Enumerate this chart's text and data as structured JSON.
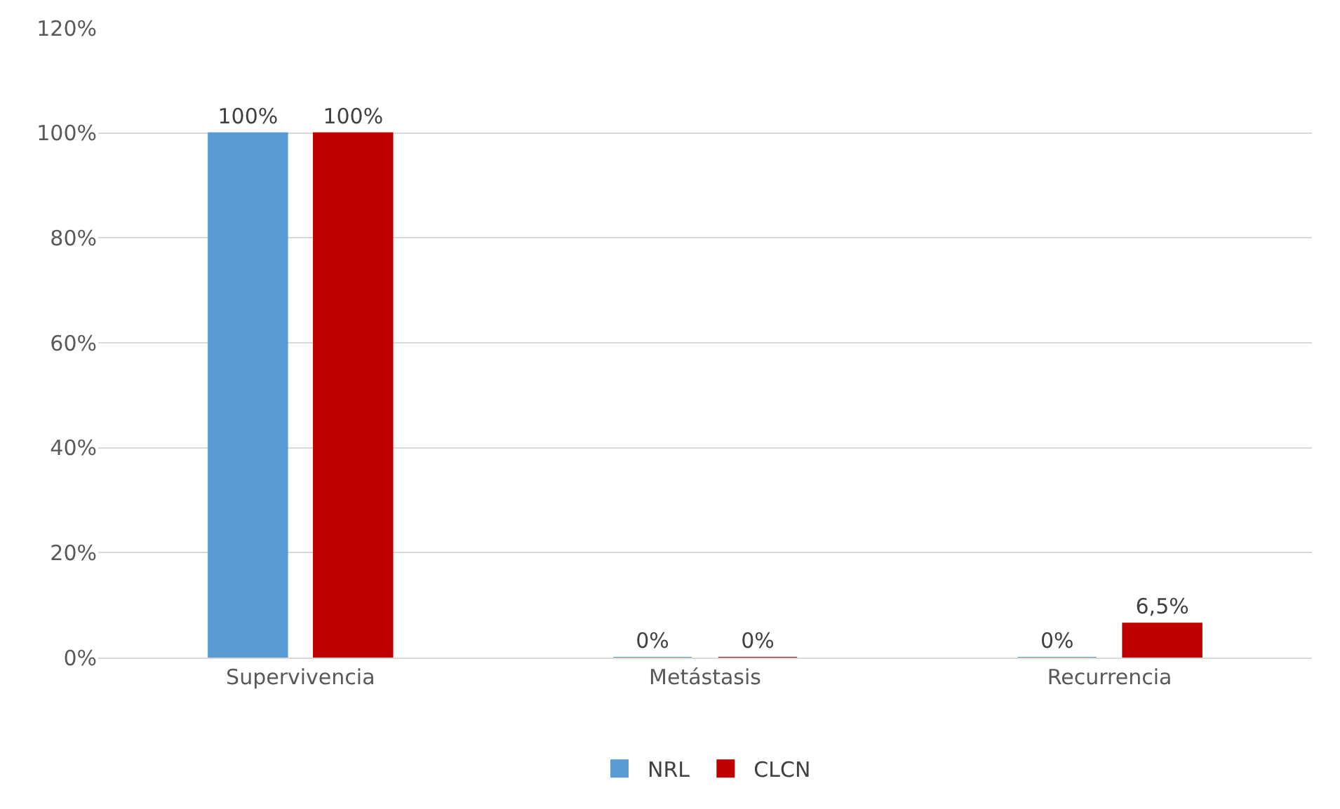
{
  "chart_data": {
    "type": "bar",
    "categories": [
      "Supervivencia",
      "Metástasis",
      "Recurrencia"
    ],
    "series": [
      {
        "name": "NRL",
        "color": "#5b9bd5",
        "values": [
          100,
          0,
          0
        ],
        "value_labels": [
          "100%",
          "0%",
          "0%"
        ]
      },
      {
        "name": "CLCN",
        "color": "#c00000",
        "values": [
          100,
          0,
          6.5
        ],
        "value_labels": [
          "100%",
          "0%",
          "6,5%"
        ]
      }
    ],
    "ylim": [
      0,
      120
    ],
    "yticks": [
      {
        "value": 0,
        "label": "0%"
      },
      {
        "value": 20,
        "label": "20%"
      },
      {
        "value": 40,
        "label": "40%"
      },
      {
        "value": 60,
        "label": "60%"
      },
      {
        "value": 80,
        "label": "80%"
      },
      {
        "value": 100,
        "label": "100%"
      },
      {
        "value": 120,
        "label": "120%"
      }
    ],
    "grid": "y",
    "legend": "bottom"
  }
}
